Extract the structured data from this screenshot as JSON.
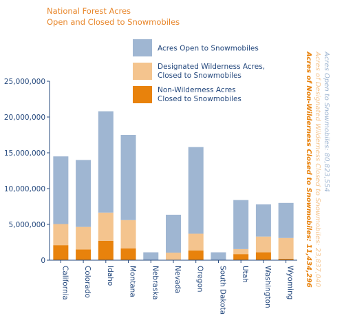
{
  "chart_data": {
    "type": "bar",
    "stacked": true,
    "title": "National Forest Acres",
    "subtitle": "Open and Closed to Snowmobiles",
    "xlabel": "",
    "ylabel": "",
    "ylim": [
      0,
      25000000
    ],
    "yticks": [
      "0",
      "5,000,000",
      "10,000,000",
      "15,000,000",
      "20,000,000",
      "25,000,000"
    ],
    "grid": false,
    "legend_position": "top-center",
    "categories": [
      "California",
      "Colorado",
      "Idaho",
      "Montana",
      "Nebraska",
      "Nevada",
      "Oregon",
      "South Dakota",
      "Utah",
      "Washington",
      "Wyoming"
    ],
    "series": [
      {
        "name": "Non-Wilderness Acres\nClosed to Snowmobiles",
        "color": "#e8820c",
        "values": [
          2100000,
          1500000,
          2700000,
          1650000,
          0,
          50000,
          1350000,
          0,
          850000,
          1100000,
          200000
        ]
      },
      {
        "name": "Designated Wilderness Acres,\nClosed to Snowmobiles",
        "color": "#f4c48e",
        "values": [
          2950000,
          3150000,
          3950000,
          3950000,
          0,
          1000000,
          2350000,
          0,
          700000,
          2200000,
          2900000
        ]
      },
      {
        "name": "Acres Open to Snowmobiles",
        "color": "#9fb6d2",
        "values": [
          9450000,
          9350000,
          14150000,
          11900000,
          1100000,
          5300000,
          12100000,
          1100000,
          6850000,
          4500000,
          4900000
        ]
      }
    ],
    "legend_order": [
      2,
      1,
      0
    ],
    "side_notes": [
      {
        "text": "Acres Open to Snowmobiles:  80,823,554",
        "color": "#9fb6d2"
      },
      {
        "text": "Acres of Designated Wilderness Closed to Snowmobiles:  23,837,040",
        "color": "#f4c48e"
      },
      {
        "text": "Acres of Non-Wilderness Closed to Snowmobiles:  11,434,296",
        "color": "#e8820c"
      }
    ]
  }
}
